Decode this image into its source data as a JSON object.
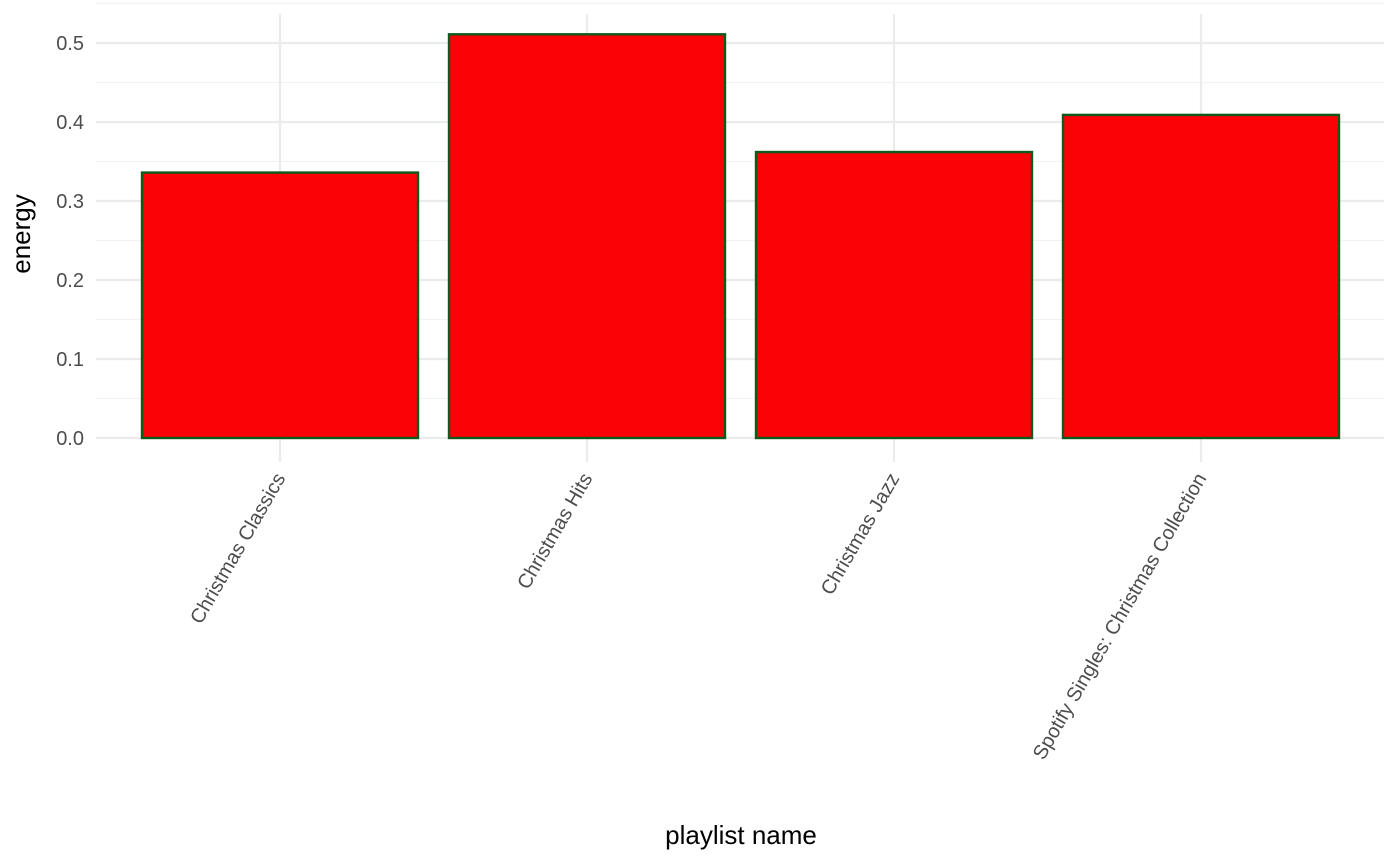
{
  "chart_data": {
    "type": "bar",
    "categories": [
      "Christmas Classics",
      "Christmas Hits",
      "Christmas Jazz",
      "Spotify Singles: Christmas Collection"
    ],
    "values": [
      0.336,
      0.511,
      0.362,
      0.409
    ],
    "xlabel": "playlist name",
    "ylabel": "energy",
    "ylim": [
      0,
      0.5
    ],
    "yticks": [
      "0.0",
      "0.1",
      "0.2",
      "0.3",
      "0.4",
      "0.5"
    ],
    "grid": true,
    "legend": "none",
    "colors": {
      "bar_fill": "#fa0206",
      "bar_outline": "#0d5a1a",
      "grid": "#ebebeb"
    }
  }
}
